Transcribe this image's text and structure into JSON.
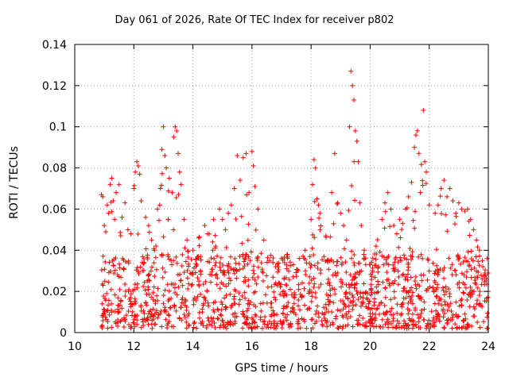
{
  "chart_data": {
    "type": "scatter",
    "title": "Day 061 of 2026, Rate Of TEC Index for receiver p802",
    "xlabel": "GPS time / hours",
    "ylabel": "ROTI / TECUs",
    "xlim": [
      10,
      24
    ],
    "ylim": [
      0,
      0.14
    ],
    "xticks": [
      10,
      12,
      14,
      16,
      18,
      20,
      22,
      24
    ],
    "yticks": [
      0,
      0.02,
      0.04,
      0.06,
      0.08,
      0.1,
      0.12,
      0.14
    ],
    "xtick_labels": [
      "10",
      "12",
      "14",
      "16",
      "18",
      "20",
      "22",
      "24"
    ],
    "ytick_labels": [
      "0",
      "0.02",
      "0.04",
      "0.06",
      "0.08",
      "0.1",
      "0.12",
      "0.14"
    ],
    "grid": true,
    "marker": "+",
    "color": "#ff0000",
    "series": [
      {
        "name": "ROTI",
        "points": [
          [
            10.9,
            0.067
          ],
          [
            10.95,
            0.066
          ],
          [
            11.0,
            0.052
          ],
          [
            11.05,
            0.049
          ],
          [
            11.1,
            0.062
          ],
          [
            11.15,
            0.058
          ],
          [
            11.2,
            0.072
          ],
          [
            11.25,
            0.075
          ],
          [
            11.3,
            0.064
          ],
          [
            11.35,
            0.055
          ],
          [
            11.4,
            0.068
          ],
          [
            11.5,
            0.072
          ],
          [
            11.6,
            0.056
          ],
          [
            11.7,
            0.063
          ],
          [
            11.8,
            0.05
          ],
          [
            11.9,
            0.048
          ],
          [
            12.0,
            0.07
          ],
          [
            12.05,
            0.078
          ],
          [
            12.1,
            0.083
          ],
          [
            12.15,
            0.081
          ],
          [
            12.2,
            0.077
          ],
          [
            12.25,
            0.064
          ],
          [
            12.4,
            0.056
          ],
          [
            12.5,
            0.052
          ],
          [
            12.6,
            0.045
          ],
          [
            12.7,
            0.04
          ],
          [
            12.8,
            0.06
          ],
          [
            12.9,
            0.07
          ],
          [
            12.95,
            0.089
          ],
          [
            13.0,
            0.1
          ],
          [
            13.05,
            0.086
          ],
          [
            13.1,
            0.08
          ],
          [
            13.2,
            0.075
          ],
          [
            13.3,
            0.068
          ],
          [
            13.35,
            0.095
          ],
          [
            13.4,
            0.1
          ],
          [
            13.45,
            0.098
          ],
          [
            13.5,
            0.087
          ],
          [
            13.55,
            0.078
          ],
          [
            13.6,
            0.072
          ],
          [
            13.7,
            0.055
          ],
          [
            13.8,
            0.045
          ],
          [
            14.0,
            0.04
          ],
          [
            14.2,
            0.046
          ],
          [
            14.4,
            0.052
          ],
          [
            14.5,
            0.048
          ],
          [
            14.7,
            0.055
          ],
          [
            14.9,
            0.06
          ],
          [
            15.0,
            0.055
          ],
          [
            15.1,
            0.05
          ],
          [
            15.2,
            0.058
          ],
          [
            15.3,
            0.062
          ],
          [
            15.4,
            0.07
          ],
          [
            15.5,
            0.086
          ],
          [
            15.6,
            0.074
          ],
          [
            15.7,
            0.085
          ],
          [
            15.8,
            0.087
          ],
          [
            15.9,
            0.068
          ],
          [
            16.0,
            0.088
          ],
          [
            16.05,
            0.081
          ],
          [
            16.1,
            0.071
          ],
          [
            16.2,
            0.06
          ],
          [
            16.4,
            0.045
          ],
          [
            16.6,
            0.035
          ],
          [
            16.8,
            0.032
          ],
          [
            17.0,
            0.036
          ],
          [
            17.2,
            0.038
          ],
          [
            17.4,
            0.033
          ],
          [
            17.6,
            0.036
          ],
          [
            17.8,
            0.04
          ],
          [
            18.0,
            0.055
          ],
          [
            18.05,
            0.072
          ],
          [
            18.1,
            0.084
          ],
          [
            18.15,
            0.08
          ],
          [
            18.2,
            0.065
          ],
          [
            18.25,
            0.062
          ],
          [
            18.3,
            0.058
          ],
          [
            18.5,
            0.047
          ],
          [
            18.7,
            0.068
          ],
          [
            18.8,
            0.087
          ],
          [
            18.9,
            0.063
          ],
          [
            19.0,
            0.058
          ],
          [
            19.1,
            0.052
          ],
          [
            19.2,
            0.045
          ],
          [
            19.3,
            0.1
          ],
          [
            19.35,
            0.127
          ],
          [
            19.4,
            0.12
          ],
          [
            19.45,
            0.113
          ],
          [
            19.5,
            0.098
          ],
          [
            19.55,
            0.093
          ],
          [
            19.6,
            0.083
          ],
          [
            19.65,
            0.063
          ],
          [
            19.7,
            0.052
          ],
          [
            19.8,
            0.04
          ],
          [
            20.0,
            0.033
          ],
          [
            20.2,
            0.042
          ],
          [
            20.4,
            0.055
          ],
          [
            20.5,
            0.063
          ],
          [
            20.6,
            0.068
          ],
          [
            20.7,
            0.06
          ],
          [
            20.8,
            0.052
          ],
          [
            20.9,
            0.048
          ],
          [
            21.0,
            0.055
          ],
          [
            21.1,
            0.053
          ],
          [
            21.2,
            0.06
          ],
          [
            21.3,
            0.066
          ],
          [
            21.4,
            0.073
          ],
          [
            21.5,
            0.09
          ],
          [
            21.55,
            0.096
          ],
          [
            21.6,
            0.098
          ],
          [
            21.65,
            0.087
          ],
          [
            21.7,
            0.068
          ],
          [
            21.8,
            0.108
          ],
          [
            21.85,
            0.083
          ],
          [
            21.9,
            0.078
          ],
          [
            22.0,
            0.062
          ],
          [
            22.2,
            0.058
          ],
          [
            22.3,
            0.062
          ],
          [
            22.4,
            0.07
          ],
          [
            22.5,
            0.074
          ],
          [
            22.6,
            0.066
          ],
          [
            22.7,
            0.07
          ],
          [
            22.8,
            0.064
          ],
          [
            22.9,
            0.058
          ],
          [
            23.0,
            0.063
          ],
          [
            23.1,
            0.06
          ],
          [
            23.2,
            0.059
          ],
          [
            23.3,
            0.06
          ],
          [
            23.4,
            0.055
          ],
          [
            23.5,
            0.05
          ],
          [
            23.6,
            0.045
          ],
          [
            23.7,
            0.04
          ],
          [
            23.8,
            0.035
          ],
          [
            23.9,
            0.028
          ],
          [
            24.0,
            0.02
          ]
        ],
        "baseline_range": [
          0.002,
          0.038
        ],
        "baseline_density_per_hour": 110
      }
    ]
  }
}
